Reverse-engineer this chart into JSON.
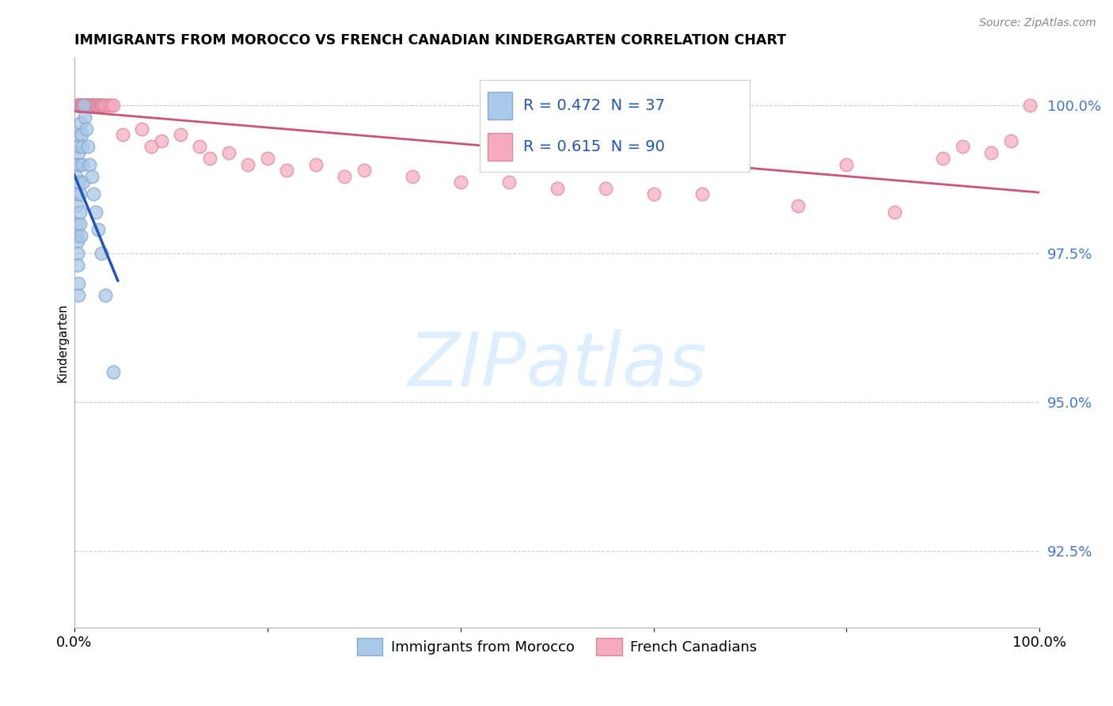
{
  "title": "IMMIGRANTS FROM MOROCCO VS FRENCH CANADIAN KINDERGARTEN CORRELATION CHART",
  "source": "Source: ZipAtlas.com",
  "ylabel": "Kindergarten",
  "y_ticks": [
    92.5,
    95.0,
    97.5,
    100.0
  ],
  "y_tick_labels": [
    "92.5%",
    "95.0%",
    "97.5%",
    "100.0%"
  ],
  "x_min": 0.0,
  "x_max": 100.0,
  "y_min": 91.2,
  "y_max": 100.8,
  "blue_R": 0.472,
  "blue_N": 37,
  "pink_R": 0.615,
  "pink_N": 90,
  "blue_color": "#aac8e8",
  "blue_edge_color": "#88aacc",
  "blue_line_color": "#2255bb",
  "pink_color": "#f5aac0",
  "pink_edge_color": "#dd8899",
  "pink_line_color": "#cc5577",
  "tick_color": "#4477cc",
  "grid_color": "#cccccc",
  "watermark_text": "ZIPatlas",
  "watermark_color": "#ddeeff",
  "legend_text_color": "#2255bb",
  "blue_x": [
    0.15,
    0.18,
    0.2,
    0.22,
    0.25,
    0.28,
    0.3,
    0.32,
    0.35,
    0.38,
    0.4,
    0.42,
    0.45,
    0.48,
    0.5,
    0.52,
    0.55,
    0.58,
    0.6,
    0.65,
    0.7,
    0.75,
    0.8,
    0.85,
    0.9,
    1.0,
    1.1,
    1.2,
    1.4,
    1.6,
    1.8,
    2.0,
    2.2,
    2.5,
    2.8,
    3.2,
    4.0
  ],
  "blue_y": [
    99.0,
    98.8,
    98.5,
    98.3,
    98.0,
    97.8,
    97.7,
    97.5,
    97.3,
    97.0,
    96.8,
    99.2,
    99.5,
    99.3,
    99.0,
    98.7,
    98.5,
    98.2,
    98.0,
    97.8,
    99.7,
    99.5,
    99.3,
    99.0,
    98.7,
    100.0,
    99.8,
    99.6,
    99.3,
    99.0,
    98.8,
    98.5,
    98.2,
    97.9,
    97.5,
    96.8,
    95.5
  ],
  "pink_x_dense": [
    0.3,
    0.35,
    0.4,
    0.42,
    0.45,
    0.47,
    0.5,
    0.52,
    0.55,
    0.57,
    0.6,
    0.62,
    0.65,
    0.67,
    0.7,
    0.72,
    0.75,
    0.77,
    0.8,
    0.82,
    0.85,
    0.87,
    0.9,
    0.92,
    0.95,
    0.97,
    1.0,
    1.05,
    1.1,
    1.15,
    1.2,
    1.25,
    1.3,
    1.35,
    1.4,
    1.45,
    1.5,
    1.55,
    1.6,
    1.65,
    1.7,
    1.75,
    1.8,
    1.85,
    1.9,
    1.95,
    2.0,
    2.1,
    2.2,
    2.3,
    2.4,
    2.5,
    2.6,
    2.7,
    2.8,
    2.9,
    3.0,
    3.2,
    3.5,
    3.8,
    4.0
  ],
  "pink_y_dense": [
    100.0,
    100.0,
    100.0,
    100.0,
    100.0,
    100.0,
    100.0,
    100.0,
    100.0,
    100.0,
    100.0,
    100.0,
    100.0,
    100.0,
    100.0,
    100.0,
    100.0,
    100.0,
    100.0,
    100.0,
    100.0,
    100.0,
    100.0,
    100.0,
    100.0,
    100.0,
    100.0,
    100.0,
    100.0,
    100.0,
    100.0,
    100.0,
    100.0,
    100.0,
    100.0,
    100.0,
    100.0,
    100.0,
    100.0,
    100.0,
    100.0,
    100.0,
    100.0,
    100.0,
    100.0,
    100.0,
    100.0,
    100.0,
    100.0,
    100.0,
    100.0,
    100.0,
    100.0,
    100.0,
    100.0,
    100.0,
    100.0,
    100.0,
    100.0,
    100.0,
    100.0
  ],
  "pink_x_sparse": [
    5.0,
    7.0,
    9.0,
    11.0,
    13.0,
    16.0,
    20.0,
    25.0,
    30.0,
    35.0,
    40.0,
    50.0,
    65.0,
    80.0,
    90.0,
    95.0,
    99.0,
    8.0,
    14.0,
    22.0,
    45.0,
    60.0,
    75.0,
    85.0,
    92.0,
    97.0,
    18.0,
    28.0,
    55.0
  ],
  "pink_y_sparse": [
    99.5,
    99.6,
    99.4,
    99.5,
    99.3,
    99.2,
    99.1,
    99.0,
    98.9,
    98.8,
    98.7,
    98.6,
    98.5,
    99.0,
    99.1,
    99.2,
    100.0,
    99.3,
    99.1,
    98.9,
    98.7,
    98.5,
    98.3,
    98.2,
    99.3,
    99.4,
    99.0,
    98.8,
    98.6
  ],
  "blue_line_x0": 0.0,
  "blue_line_x1": 4.5,
  "pink_line_x0": 0.0,
  "pink_line_x1": 100.0
}
